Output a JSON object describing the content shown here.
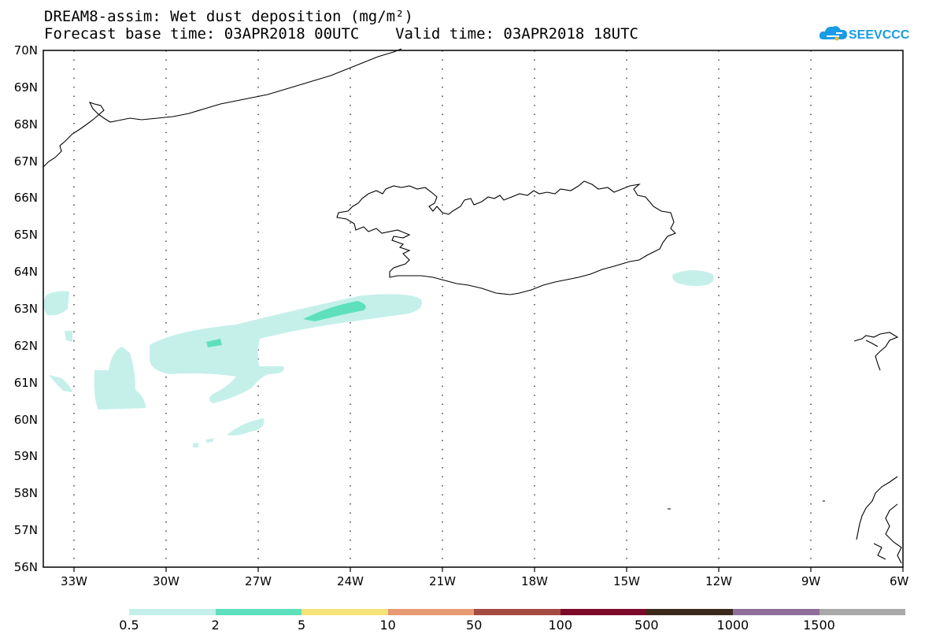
{
  "title": {
    "line1": "DREAM8-assim: Wet dust deposition (mg/m²)",
    "line2": "Forecast base time: 03APR2018 00UTC    Valid time: 03APR2018 18UTC"
  },
  "logo": {
    "text": "SEEVCCC",
    "color": "#1a9be6",
    "icon": "cloud-icon"
  },
  "map": {
    "projection": "lat-lon",
    "lon_range": [
      -34,
      -6
    ],
    "lat_range": [
      56,
      70
    ],
    "grid": "dotted",
    "lat_labels": [
      "70N",
      "69N",
      "68N",
      "67N",
      "66N",
      "65N",
      "64N",
      "63N",
      "62N",
      "61N",
      "60N",
      "59N",
      "58N",
      "57N",
      "56N"
    ],
    "lon_labels": [
      "33W",
      "30W",
      "27W",
      "24W",
      "21W",
      "18W",
      "15W",
      "12W",
      "9W",
      "6W"
    ]
  },
  "legend": {
    "labels": [
      "0.5",
      "2",
      "5",
      "10",
      "50",
      "100",
      "500",
      "1000",
      "1500"
    ],
    "colors": [
      "#c5f0ea",
      "#5ee0bd",
      "#f5e37a",
      "#e89a72",
      "#a44b42",
      "#7c0a2a",
      "#3b2a1c",
      "#8e6f9c",
      "#a8a8a8"
    ]
  },
  "fill_colors": {
    "low": "#c5f0ea",
    "mid": "#5ee0bd"
  }
}
